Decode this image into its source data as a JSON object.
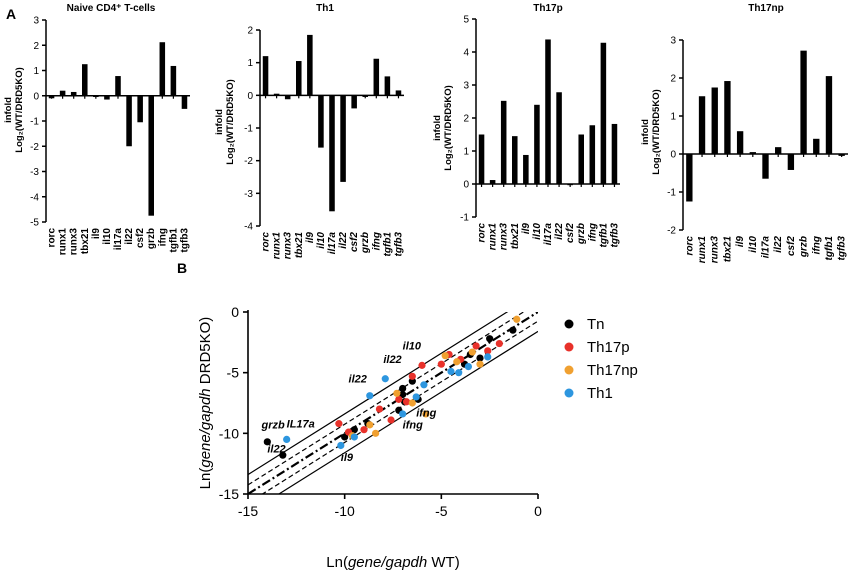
{
  "panel_letters": [
    "A",
    "B"
  ],
  "chart_data": [
    {
      "type": "bar",
      "title": "Naive CD4⁺ T-cells",
      "ylabel_line1": "infold",
      "ylabel_line2": "Log₂(WT/DRD5KO)",
      "categories": [
        "rorc",
        "runx1",
        "runx3",
        "tbx21",
        "il9",
        "il10",
        "il17a",
        "il22",
        "csf2",
        "grzb",
        "ifng",
        "tgfb1",
        "tgfb3"
      ],
      "values": [
        -0.1,
        0.2,
        0.15,
        1.25,
        -0.05,
        -0.15,
        0.78,
        -2.0,
        -1.05,
        -4.75,
        2.12,
        1.18,
        -0.52
      ],
      "ylim": [
        -5,
        3
      ],
      "yticks": [
        -5,
        -4,
        -3,
        -2,
        -1,
        0,
        1,
        2,
        3
      ],
      "tick_labels": [
        "-5",
        "-4",
        "-3",
        "-2",
        "-1",
        "0",
        "1",
        "2",
        "3"
      ],
      "category_italic": false
    },
    {
      "type": "bar",
      "title": "Th1",
      "ylabel_line1": "infold",
      "ylabel_line2": "Log₂(WT/DRD5KO)",
      "categories": [
        "rorc",
        "runx1",
        "runx3",
        "tbx21",
        "il9",
        "il10",
        "il17a",
        "il22",
        "csf2",
        "grzb",
        "ifng",
        "tgfb1",
        "tgfb3"
      ],
      "values": [
        1.2,
        0.05,
        -0.12,
        1.05,
        1.85,
        -1.6,
        -3.55,
        -2.65,
        -0.4,
        -0.05,
        1.12,
        0.58,
        0.15
      ],
      "ylim": [
        -4,
        2
      ],
      "yticks": [
        -4,
        -3,
        -2,
        -1,
        0,
        1,
        2
      ],
      "tick_labels": [
        "-4",
        "-3",
        "-2",
        "-1",
        "0",
        "1",
        "2"
      ],
      "category_italic": true
    },
    {
      "type": "bar",
      "title": "Th17p",
      "ylabel_line1": "infold",
      "ylabel_line2": "Log₂(WT/DRD5KO)",
      "categories": [
        "rorc",
        "runx1",
        "runx3",
        "tbx21",
        "il9",
        "il10",
        "il17a",
        "il22",
        "csf2",
        "grzb",
        "ifng",
        "tgfb1",
        "tgfb3"
      ],
      "values": [
        1.5,
        0.12,
        2.52,
        1.45,
        0.88,
        2.4,
        4.38,
        2.78,
        -0.02,
        1.5,
        1.78,
        4.28,
        1.82
      ],
      "ylim": [
        -1,
        5
      ],
      "yticks": [
        -1,
        0,
        1,
        2,
        3,
        4,
        5
      ],
      "tick_labels": [
        "-1",
        "0",
        "1",
        "2",
        "3",
        "4",
        "5"
      ],
      "category_italic": true
    },
    {
      "type": "bar",
      "title": "Th17np",
      "ylabel_line1": "infold",
      "ylabel_line2": "Log₂(WT/DRD5KO)",
      "categories": [
        "rorc",
        "runx1",
        "runx3",
        "tbx21",
        "il9",
        "il10",
        "il17a",
        "il22",
        "csf2",
        "grzb",
        "ifng",
        "tgfb1",
        "tgfb3"
      ],
      "values": [
        -1.25,
        1.52,
        1.75,
        1.92,
        0.6,
        0.05,
        -0.65,
        0.18,
        -0.42,
        2.72,
        0.4,
        2.05,
        -0.05
      ],
      "ylim": [
        -2,
        3
      ],
      "yticks": [
        -2,
        -1,
        0,
        1,
        2,
        3
      ],
      "tick_labels": [
        "-2",
        "-1",
        "0",
        "1",
        "2",
        "3"
      ],
      "category_italic": true
    },
    {
      "type": "scatter",
      "xlabel_pre": "Ln(",
      "xlabel_it": "gene/gapdh",
      "xlabel_post": " WT)",
      "ylabel_pre": "Ln(",
      "ylabel_it": "gene/gapdh",
      "ylabel_post": " DRD5KO)",
      "xlim": [
        -15,
        0
      ],
      "ylim": [
        -15,
        0
      ],
      "xticks": [
        -15,
        -10,
        -5,
        0
      ],
      "yticks": [
        -15,
        -10,
        -5,
        0
      ],
      "xtick_labels": [
        "-15",
        "-10",
        "-5",
        "0"
      ],
      "ytick_labels": [
        "-15",
        "-10",
        "-5",
        "0"
      ],
      "legend_position": "right",
      "series": [
        {
          "name": "Tn",
          "color": "#000000",
          "x": [
            -14.0,
            -13.2,
            -10.0,
            -9.5,
            -8.8,
            -7.2,
            -7.0,
            -7.0,
            -6.9,
            -6.5,
            -6.2,
            -3.5,
            -3.8,
            -3.0,
            -2.5,
            -1.3
          ],
          "y": [
            -10.7,
            -11.8,
            -10.3,
            -9.7,
            -9.2,
            -8.1,
            -6.8,
            -6.3,
            -7.4,
            -5.7,
            -7.2,
            -3.5,
            -4.3,
            -3.8,
            -2.2,
            -1.5
          ]
        },
        {
          "name": "Th17p",
          "color": "#e8312a",
          "x": [
            -10.3,
            -9.8,
            -9.0,
            -8.2,
            -7.6,
            -7.2,
            -6.8,
            -6.5,
            -6.0,
            -5.0,
            -4.6,
            -4.0,
            -3.2,
            -2.6,
            -2.0
          ],
          "y": [
            -9.2,
            -9.9,
            -9.7,
            -8.0,
            -8.9,
            -7.2,
            -7.4,
            -5.3,
            -4.4,
            -4.3,
            -3.5,
            -3.9,
            -2.8,
            -3.2,
            -2.6
          ]
        },
        {
          "name": "Th17np",
          "color": "#f0a030",
          "x": [
            -9.6,
            -8.7,
            -8.4,
            -7.3,
            -6.5,
            -5.8,
            -4.8,
            -4.2,
            -3.4,
            -3.0,
            -1.1
          ],
          "y": [
            -10.2,
            -9.3,
            -10.0,
            -6.7,
            -7.5,
            -8.4,
            -3.6,
            -4.1,
            -3.3,
            -4.3,
            -0.6
          ]
        },
        {
          "name": "Th1",
          "color": "#2d96df",
          "x": [
            -13.0,
            -10.2,
            -9.5,
            -8.7,
            -7.9,
            -7.0,
            -6.3,
            -5.9,
            -4.5,
            -4.1,
            -3.6,
            -2.6
          ],
          "y": [
            -10.5,
            -11.0,
            -10.3,
            -6.9,
            -5.5,
            -8.4,
            -7.0,
            -6.0,
            -4.9,
            -5.0,
            -4.5,
            -3.7
          ]
        }
      ],
      "annotations": [
        {
          "text": "grzb",
          "x": -14.3,
          "y": -9.6
        },
        {
          "text": "IL17a",
          "x": -13.0,
          "y": -9.5
        },
        {
          "text": "il22",
          "x": -14.0,
          "y": -11.6
        },
        {
          "text": "il9",
          "x": -10.2,
          "y": -12.3
        },
        {
          "text": "il22",
          "x": -9.8,
          "y": -5.8
        },
        {
          "text": "il22",
          "x": -8.0,
          "y": -4.2
        },
        {
          "text": "il10",
          "x": -7.0,
          "y": -3.1
        },
        {
          "text": "ifng",
          "x": -6.3,
          "y": -8.6
        },
        {
          "text": "ifng",
          "x": -7.0,
          "y": -9.6
        }
      ],
      "lines": [
        {
          "intercept": 0,
          "style": "dashdot",
          "width": 2.2
        },
        {
          "intercept": 0.75,
          "style": "dash",
          "width": 1.2
        },
        {
          "intercept": -0.75,
          "style": "dash",
          "width": 1.2
        },
        {
          "intercept": 1.6,
          "style": "solid",
          "width": 1.2
        },
        {
          "intercept": -1.6,
          "style": "solid",
          "width": 1.2
        }
      ]
    }
  ]
}
